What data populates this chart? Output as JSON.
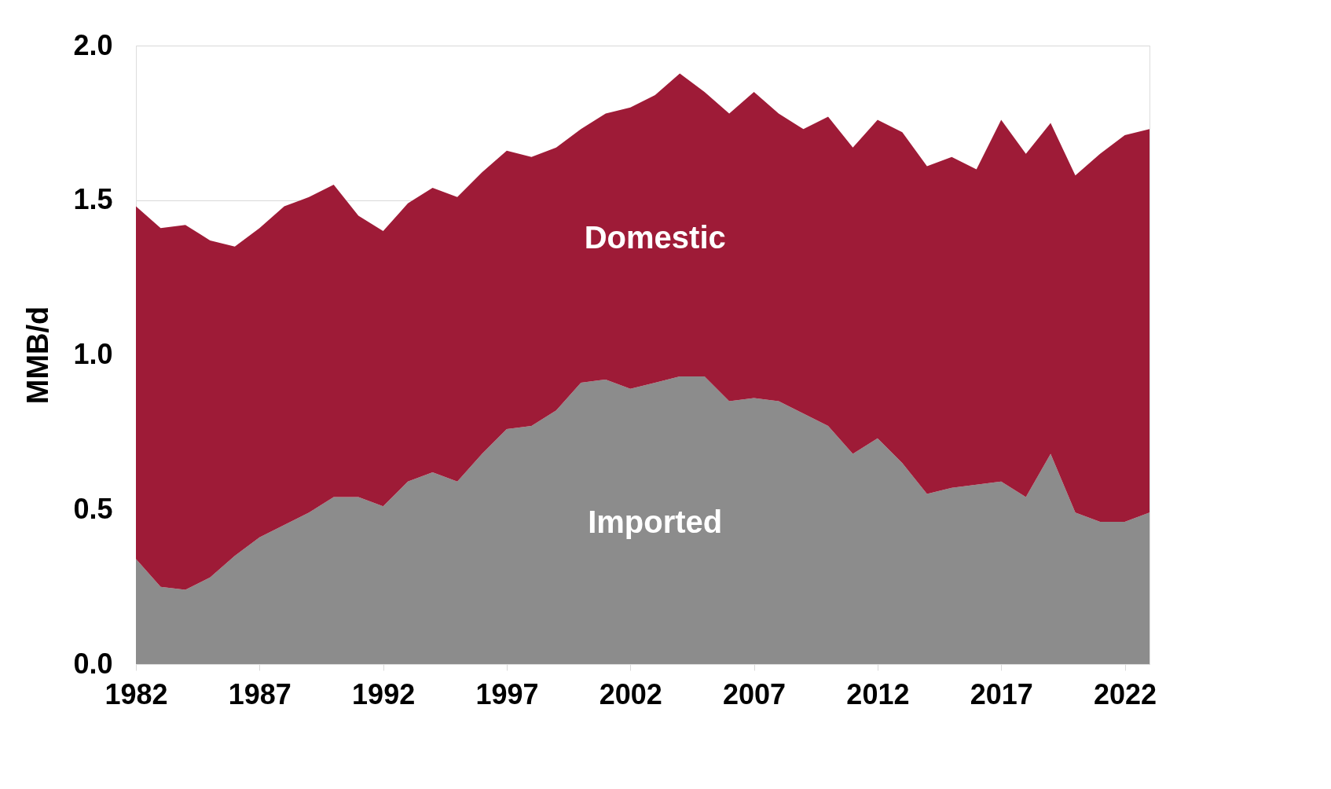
{
  "chart_data": {
    "type": "area",
    "ylabel": "MMB/d",
    "stacked": true,
    "legend": false,
    "grid": "y",
    "x": [
      1982,
      1983,
      1984,
      1985,
      1986,
      1987,
      1988,
      1989,
      1990,
      1991,
      1992,
      1993,
      1994,
      1995,
      1996,
      1997,
      1998,
      1999,
      2000,
      2001,
      2002,
      2003,
      2004,
      2005,
      2006,
      2007,
      2008,
      2009,
      2010,
      2011,
      2012,
      2013,
      2014,
      2015,
      2016,
      2017,
      2018,
      2019,
      2020,
      2021,
      2022,
      2023
    ],
    "series": [
      {
        "name": "Imported",
        "color": "#8c8c8c",
        "values": [
          0.34,
          0.25,
          0.24,
          0.28,
          0.35,
          0.41,
          0.45,
          0.49,
          0.54,
          0.54,
          0.51,
          0.59,
          0.62,
          0.59,
          0.68,
          0.76,
          0.77,
          0.82,
          0.91,
          0.92,
          0.89,
          0.91,
          0.93,
          0.93,
          0.85,
          0.86,
          0.85,
          0.81,
          0.77,
          0.68,
          0.73,
          0.65,
          0.55,
          0.57,
          0.58,
          0.59,
          0.54,
          0.68,
          0.49,
          0.46,
          0.46,
          0.49
        ]
      },
      {
        "name": "Domestic",
        "color": "#9e1b37",
        "values": [
          1.14,
          1.16,
          1.18,
          1.09,
          1.0,
          1.0,
          1.03,
          1.02,
          1.01,
          0.91,
          0.89,
          0.9,
          0.92,
          0.92,
          0.91,
          0.9,
          0.87,
          0.85,
          0.82,
          0.86,
          0.91,
          0.93,
          0.98,
          0.92,
          0.93,
          0.99,
          0.93,
          0.92,
          1.0,
          0.99,
          1.03,
          1.07,
          1.06,
          1.07,
          1.02,
          1.17,
          1.11,
          1.07,
          1.09,
          1.19,
          1.25,
          1.24
        ]
      }
    ],
    "xlim": [
      1982,
      2023
    ],
    "xticks": [
      1982,
      1987,
      1992,
      1997,
      2002,
      2007,
      2012,
      2017,
      2022
    ],
    "ylim": [
      0,
      2.0
    ],
    "yticks": [
      {
        "value": 0,
        "label": "0.0"
      },
      {
        "value": 0.5,
        "label": "0.5"
      },
      {
        "value": 1.0,
        "label": "1.0"
      },
      {
        "value": 1.5,
        "label": "1.5"
      },
      {
        "value": 2.0,
        "label": "2.0"
      }
    ]
  }
}
